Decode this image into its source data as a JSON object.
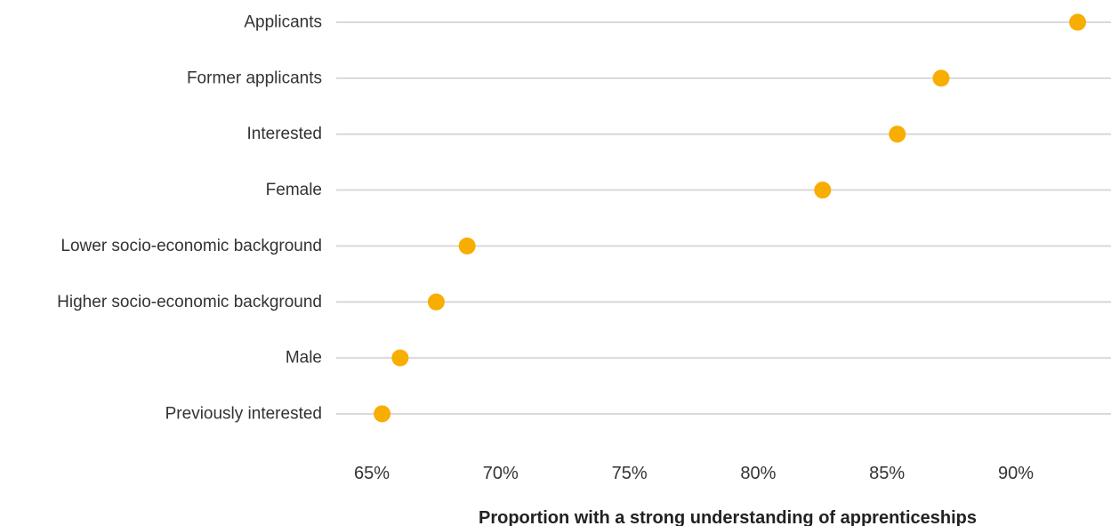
{
  "chart_data": {
    "type": "scatter",
    "style": "dot-plot",
    "orientation": "horizontal",
    "categories": [
      "Applicants",
      "Former applicants",
      "Interested",
      "Female",
      "Lower socio-economic background",
      "Higher socio-economic background",
      "Male",
      "Previously interested"
    ],
    "series": [
      {
        "values": [
          92.4,
          87.1,
          85.4,
          82.5,
          68.7,
          67.5,
          66.1,
          65.4
        ]
      }
    ],
    "xlabel": "Proportion with a strong understanding of apprenticeships",
    "ylabel": "",
    "xlim": [
      63.5,
      93.8
    ],
    "xticks": [
      65,
      70,
      75,
      80,
      85,
      90
    ],
    "xtick_labels": [
      "65%",
      "70%",
      "75%",
      "80%",
      "85%",
      "90%"
    ],
    "grid": "horizontal row lines",
    "legend": "none",
    "colors": {
      "point": "#F7AE00",
      "row_line": "#D9D9D9",
      "text": "#333333"
    }
  }
}
